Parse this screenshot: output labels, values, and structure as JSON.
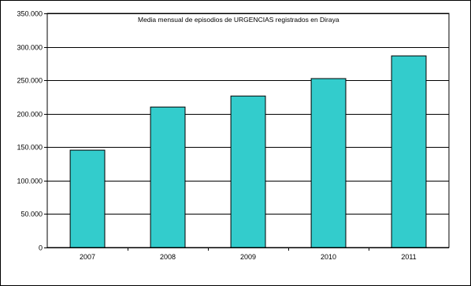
{
  "chart_data": {
    "type": "bar",
    "title": "Media mensual de episodios de URGENCIAS registrados en Diraya",
    "xlabel": "",
    "ylabel": "",
    "categories": [
      "2007",
      "2008",
      "2009",
      "2010",
      "2011"
    ],
    "values": [
      145500,
      210000,
      226500,
      252500,
      286500
    ],
    "ylim": [
      0,
      350000
    ],
    "yticks": [
      "0",
      "50.000",
      "100.000",
      "150.000",
      "200.000",
      "250.000",
      "300.000",
      "350.000"
    ],
    "ytick_values": [
      0,
      50000,
      100000,
      150000,
      200000,
      250000,
      300000,
      350000
    ],
    "grid": true,
    "legend": "none",
    "colors": {
      "bar_fill": "#33CCCC",
      "bar_stroke": "#000000",
      "grid": "#000000",
      "axis": "#000000",
      "background": "#FFFFFF"
    }
  }
}
